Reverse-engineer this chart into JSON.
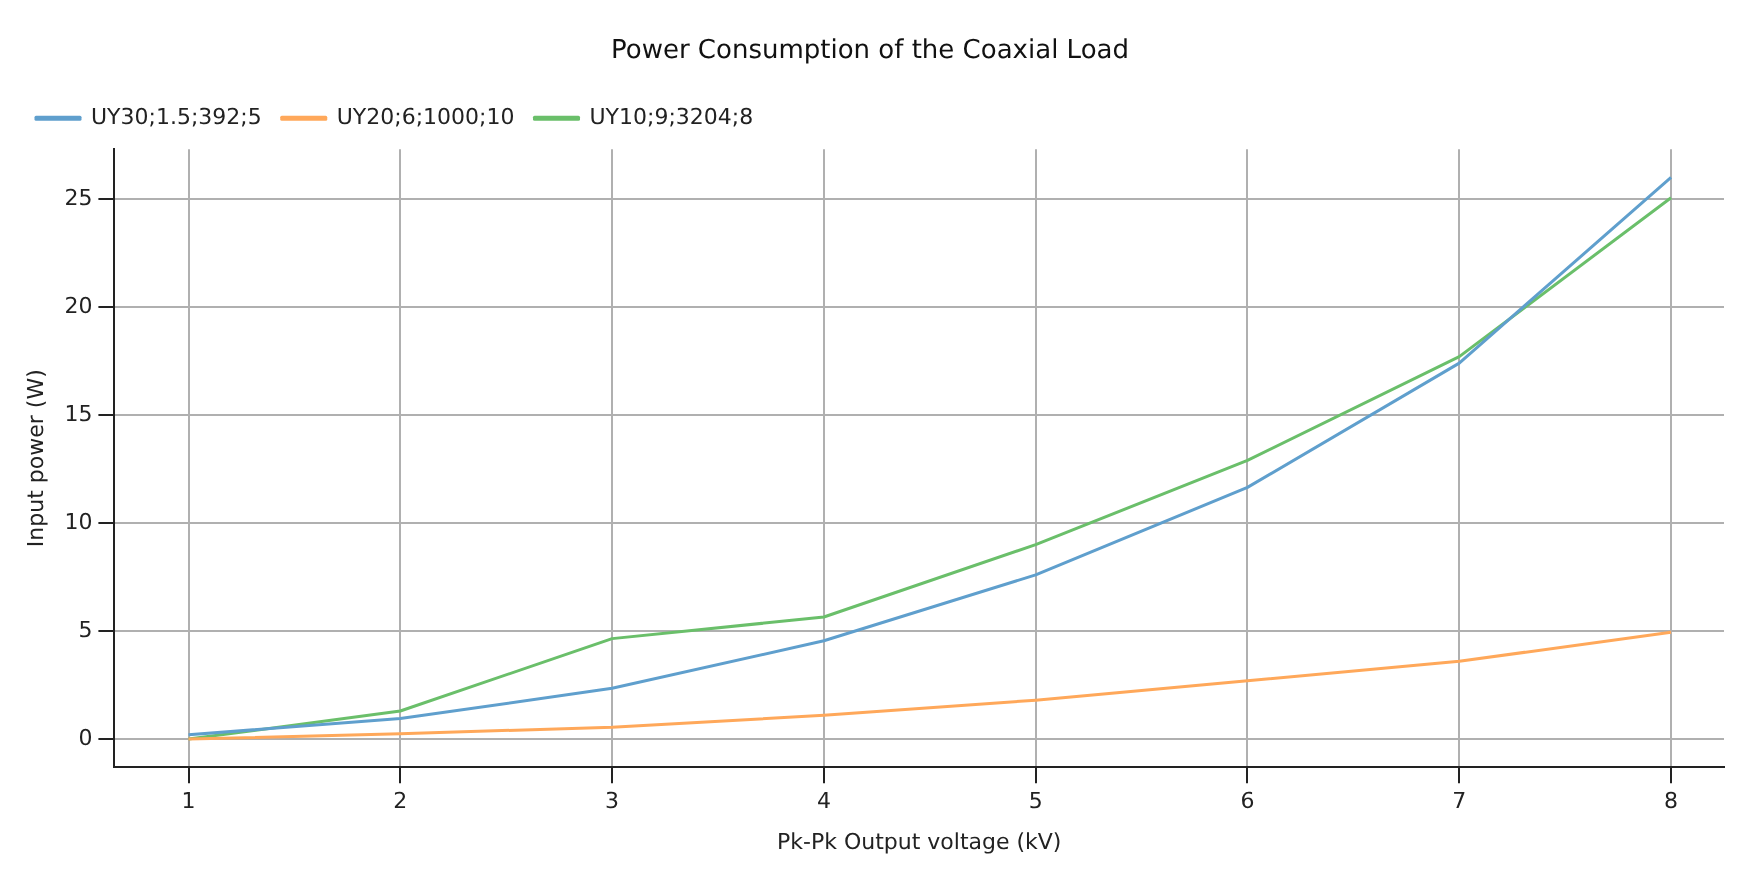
{
  "chart_data": {
    "type": "line",
    "title": "Power Consumption of the Coaxial Load",
    "xlabel": "Pk-Pk Output voltage (kV)",
    "ylabel": "Input power (W)",
    "x": [
      1,
      2,
      3,
      4,
      5,
      6,
      7,
      8
    ],
    "series": [
      {
        "name": "UY30;1.5;392;5",
        "color": "#5f9fcd",
        "values": [
          0.2,
          0.95,
          2.35,
          4.55,
          7.6,
          11.65,
          17.4,
          26.0
        ]
      },
      {
        "name": "UY20;6;1000;10",
        "color": "#ffa85a",
        "values": [
          0.0,
          0.25,
          0.55,
          1.1,
          1.8,
          2.7,
          3.6,
          4.95
        ]
      },
      {
        "name": "UY10;9;3204;8",
        "color": "#6abf6a",
        "values": [
          0.0,
          1.3,
          4.65,
          5.65,
          9.0,
          12.9,
          17.7,
          25.05
        ]
      }
    ],
    "xlim": [
      0.65,
      8.25
    ],
    "xticks": [
      1,
      2,
      3,
      4,
      5,
      6,
      7,
      8
    ],
    "ylim": [
      -1.3,
      27.3
    ],
    "yticks": [
      0,
      5,
      10,
      15,
      20,
      25
    ],
    "grid": true,
    "legend": "top left",
    "marker": "none",
    "line_style": "solid"
  }
}
